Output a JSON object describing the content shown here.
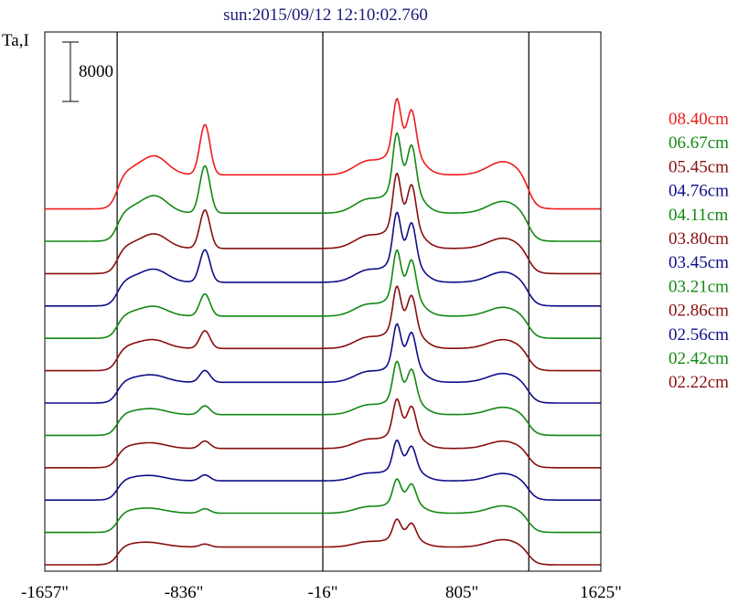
{
  "chart_data": {
    "type": "line",
    "title": "sun:2015/09/12 12:10:02.760",
    "ylabel": "Ta,I",
    "scale_bar_label": "8000",
    "scale_bar_value": 8000,
    "x_ticks": [
      "-1657\"",
      "-836\"",
      "-16\"",
      "805\"",
      "1625\""
    ],
    "x_tick_values": [
      -1657,
      -836,
      -16,
      805,
      1625
    ],
    "xlim": [
      -1657,
      1625
    ],
    "vertical_lines": [
      -1230,
      -16,
      1200
    ],
    "series": [
      {
        "name": "08.40cm",
        "color": "#ee1c1c",
        "offset": 11,
        "disk_amp": 23,
        "limb_amp": 9,
        "core_amp": 26,
        "inner_amp": 34,
        "left_amp": 34
      },
      {
        "name": "06.67cm",
        "color": "#118811",
        "offset": 10,
        "disk_amp": 19,
        "limb_amp": 8,
        "core_amp": 26,
        "inner_amp": 37,
        "left_amp": 32
      },
      {
        "name": "05.45cm",
        "color": "#880e0e",
        "offset": 9,
        "disk_amp": 17,
        "limb_amp": 7,
        "core_amp": 24,
        "inner_amp": 35,
        "left_amp": 26
      },
      {
        "name": "04.76cm",
        "color": "#0e0e88",
        "offset": 8,
        "disk_amp": 16,
        "limb_amp": 7,
        "core_amp": 23,
        "inner_amp": 32,
        "left_amp": 22
      },
      {
        "name": "04.11cm",
        "color": "#118811",
        "offset": 7,
        "disk_amp": 15,
        "limb_amp": 6,
        "core_amp": 22,
        "inner_amp": 30,
        "left_amp": 15
      },
      {
        "name": "03.80cm",
        "color": "#880e0e",
        "offset": 6,
        "disk_amp": 15,
        "limb_amp": 6,
        "core_amp": 21,
        "inner_amp": 28,
        "left_amp": 12
      },
      {
        "name": "03.45cm",
        "color": "#0e0e88",
        "offset": 5,
        "disk_amp": 14,
        "limb_amp": 6,
        "core_amp": 20,
        "inner_amp": 26,
        "left_amp": 8
      },
      {
        "name": "03.21cm",
        "color": "#118811",
        "offset": 4,
        "disk_amp": 14,
        "limb_amp": 5,
        "core_amp": 18,
        "inner_amp": 24,
        "left_amp": 6
      },
      {
        "name": "02.86cm",
        "color": "#880e0e",
        "offset": 3,
        "disk_amp": 13,
        "limb_amp": 5,
        "core_amp": 17,
        "inner_amp": 22,
        "left_amp": 5
      },
      {
        "name": "02.56cm",
        "color": "#0e0e88",
        "offset": 2,
        "disk_amp": 13,
        "limb_amp": 5,
        "core_amp": 14,
        "inner_amp": 18,
        "left_amp": 4
      },
      {
        "name": "02.42cm",
        "color": "#118811",
        "offset": 1,
        "disk_amp": 13,
        "limb_amp": 5,
        "core_amp": 12,
        "inner_amp": 15,
        "left_amp": 3
      },
      {
        "name": "02.22cm",
        "color": "#880e0e",
        "offset": 0,
        "disk_amp": 12,
        "limb_amp": 5,
        "core_amp": 10,
        "inner_amp": 12,
        "left_amp": 2
      }
    ]
  }
}
